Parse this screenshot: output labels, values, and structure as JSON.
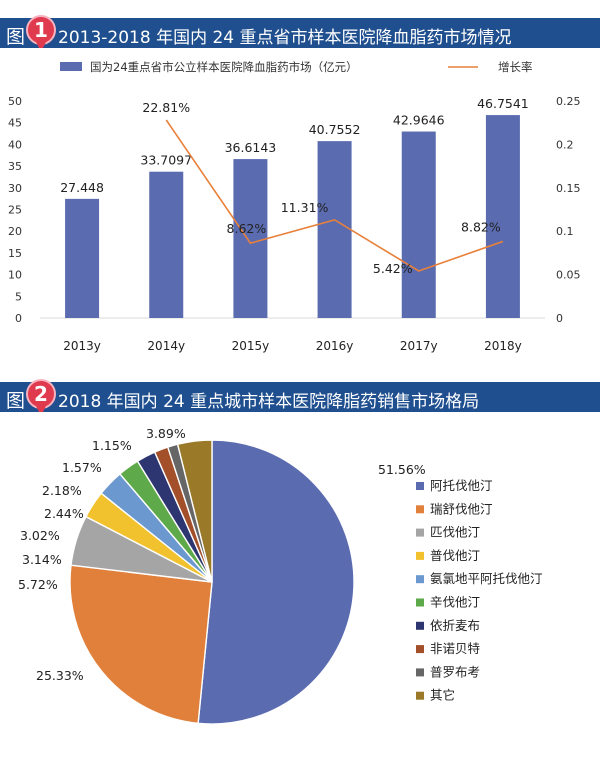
{
  "figure1": {
    "label": "图",
    "badge": "1",
    "title": "2013-2018 年国内 24 重点省市样本医院降血脂药市场情况"
  },
  "figure2": {
    "label": "图",
    "badge": "2",
    "title": "2018 年国内 24 重点城市样本医院降脂药销售市场格局"
  },
  "chart_data": [
    {
      "type": "bar",
      "title": "",
      "categories": [
        "2013y",
        "2014y",
        "2015y",
        "2016y",
        "2017y",
        "2018y"
      ],
      "series": [
        {
          "name": "国为24重点省市公立样本医院降血脂药市场（亿元）",
          "type": "bar",
          "axis": "left",
          "color": "#5a6bb0",
          "values": [
            27.448,
            33.7097,
            36.6143,
            40.7552,
            42.9646,
            46.7541
          ],
          "labels": [
            "27.448",
            "33.7097",
            "36.6143",
            "40.7552",
            "42.9646",
            "46.7541"
          ]
        },
        {
          "name": "增长率",
          "type": "line",
          "axis": "right",
          "color": "#e8803a",
          "values": [
            null,
            0.2281,
            0.0862,
            0.1131,
            0.0542,
            0.0882
          ],
          "labels": [
            "",
            "22.81%",
            "8.62%",
            "11.31%",
            "5.42%",
            "8.82%"
          ]
        }
      ],
      "ylim": [
        0,
        50
      ],
      "yticks": [
        "0",
        "5",
        "10",
        "15",
        "20",
        "25",
        "30",
        "35",
        "40",
        "45",
        "50"
      ],
      "y2lim": [
        0,
        0.25
      ],
      "y2ticks": [
        "0",
        "0.05",
        "0.1",
        "0.15",
        "0.2",
        "0.25"
      ],
      "legend_position": "top",
      "grid": false
    },
    {
      "type": "pie",
      "title": "",
      "slices": [
        {
          "name": "阿托伐他汀",
          "value": 51.56,
          "label": "51.56%",
          "color": "#5a6bb0"
        },
        {
          "name": "瑞舒伐他汀",
          "value": 25.33,
          "label": "25.33%",
          "color": "#e0803a"
        },
        {
          "name": "匹伐他汀",
          "value": 5.72,
          "label": "5.72%",
          "color": "#a5a5a5"
        },
        {
          "name": "普伐他汀",
          "value": 3.14,
          "label": "3.14%",
          "color": "#f2c12e"
        },
        {
          "name": "氨氯地平阿托伐他汀",
          "value": 3.02,
          "label": "3.02%",
          "color": "#6b98cf"
        },
        {
          "name": "辛伐他汀",
          "value": 2.44,
          "label": "2.44%",
          "color": "#5eaa4a"
        },
        {
          "name": "依折麦布",
          "value": 2.18,
          "label": "2.18%",
          "color": "#2d3670"
        },
        {
          "name": "非诺贝特",
          "value": 1.57,
          "label": "1.57%",
          "color": "#a3502a"
        },
        {
          "name": "普罗布考",
          "value": 1.15,
          "label": "1.15%",
          "color": "#666666"
        },
        {
          "name": "其它",
          "value": 3.89,
          "label": "3.89%",
          "color": "#9a7a28"
        }
      ],
      "legend_position": "right"
    }
  ]
}
